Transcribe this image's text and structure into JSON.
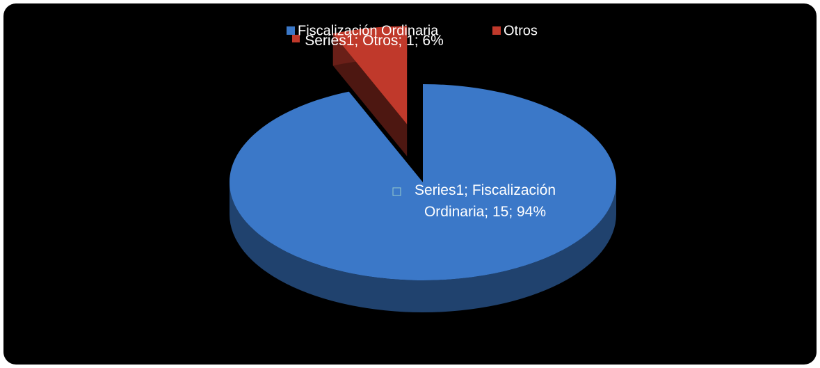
{
  "chart_data": {
    "type": "pie",
    "categories": [
      "Fiscalización Ordinaria",
      "Otros"
    ],
    "series": [
      {
        "name": "Series1",
        "values": [
          15,
          1
        ],
        "value_labels": [
          "Series1; Fiscalización Ordinaria; 15; 94%",
          "Series1; Otros; 1; 6%"
        ]
      }
    ],
    "colors": [
      "#3b78c8",
      "#c0392b"
    ],
    "legend": "top"
  }
}
